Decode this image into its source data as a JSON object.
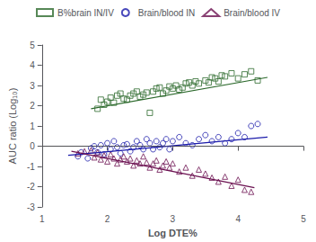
{
  "chart_data": {
    "type": "scatter",
    "xlabel": "Log DTE%",
    "ylabel": "AUC ratio (Log₁₀)",
    "xlim": [
      1,
      5
    ],
    "ylim": [
      -3,
      5
    ],
    "xticks": [
      1,
      2,
      3,
      4,
      5
    ],
    "yticks": [
      -3,
      -2,
      -1,
      0,
      1,
      2,
      3,
      4,
      5
    ],
    "grid": false,
    "legend": "top",
    "hline": {
      "y": 0,
      "line_style": "dotted",
      "color": "#555555"
    },
    "series": [
      {
        "name": "B%brain IN/IV",
        "color": "#2d6a2d",
        "marker": "square",
        "x": [
          1.85,
          1.9,
          1.95,
          2.0,
          2.05,
          2.1,
          2.15,
          2.2,
          2.25,
          2.3,
          2.35,
          2.4,
          2.45,
          2.5,
          2.55,
          2.6,
          2.65,
          2.7,
          2.75,
          2.8,
          2.85,
          2.9,
          2.95,
          3.0,
          3.05,
          3.1,
          3.15,
          3.2,
          3.25,
          3.3,
          3.35,
          3.4,
          3.5,
          3.55,
          3.6,
          3.65,
          3.7,
          3.75,
          3.8,
          3.9,
          4.0,
          4.1,
          4.2,
          4.3
        ],
        "values": [
          1.85,
          2.3,
          2.05,
          2.2,
          2.4,
          2.15,
          2.5,
          2.6,
          2.35,
          2.3,
          2.5,
          2.6,
          2.7,
          2.45,
          2.55,
          2.65,
          1.65,
          2.7,
          2.85,
          2.9,
          2.6,
          2.75,
          2.95,
          2.85,
          3.0,
          2.8,
          2.9,
          3.1,
          3.15,
          3.0,
          3.2,
          3.1,
          3.25,
          3.15,
          3.4,
          3.35,
          3.2,
          3.5,
          3.45,
          3.6,
          3.35,
          3.55,
          3.7,
          3.25
        ],
        "trendline": {
          "x": [
            1.75,
            4.45
          ],
          "y": [
            1.85,
            3.4
          ]
        }
      },
      {
        "name": "Brain/blood IN",
        "color": "#1a1aaa",
        "marker": "circle",
        "x": [
          1.55,
          1.6,
          1.7,
          1.75,
          1.8,
          1.85,
          1.9,
          1.95,
          2.0,
          2.05,
          2.1,
          2.15,
          2.2,
          2.25,
          2.3,
          2.35,
          2.4,
          2.45,
          2.5,
          2.55,
          2.6,
          2.65,
          2.7,
          2.75,
          2.8,
          2.85,
          2.9,
          2.95,
          3.0,
          3.1,
          3.2,
          3.3,
          3.4,
          3.5,
          3.6,
          3.7,
          3.8,
          3.9,
          4.0,
          4.1,
          4.2,
          4.3
        ],
        "values": [
          -0.5,
          -0.3,
          -0.6,
          -0.1,
          0.0,
          -0.3,
          0.05,
          -0.4,
          0.15,
          -0.15,
          0.25,
          -0.05,
          -0.35,
          0.05,
          0.1,
          -0.25,
          -0.05,
          0.25,
          0.05,
          -0.15,
          0.35,
          0.15,
          -0.15,
          0.25,
          -0.05,
          0.15,
          0.35,
          -0.15,
          0.25,
          0.45,
          0.15,
          0.05,
          0.35,
          0.55,
          0.25,
          0.45,
          0.15,
          0.35,
          0.65,
          0.45,
          1.0,
          1.1
        ],
        "trendline": {
          "x": [
            1.4,
            4.45
          ],
          "y": [
            -0.45,
            0.45
          ]
        }
      },
      {
        "name": "Brain/blood IV",
        "color": "#6b1050",
        "marker": "triangle",
        "x": [
          1.55,
          1.65,
          1.75,
          1.8,
          1.85,
          1.9,
          1.95,
          2.0,
          2.05,
          2.1,
          2.15,
          2.2,
          2.25,
          2.3,
          2.35,
          2.4,
          2.45,
          2.5,
          2.55,
          2.6,
          2.65,
          2.7,
          2.75,
          2.8,
          2.85,
          2.9,
          2.95,
          3.0,
          3.1,
          3.2,
          3.3,
          3.4,
          3.5,
          3.6,
          3.7,
          3.8,
          3.9,
          4.0,
          4.1,
          4.2
        ],
        "values": [
          -0.35,
          -0.25,
          -0.2,
          -0.55,
          -0.3,
          -0.65,
          -0.45,
          -0.75,
          -0.4,
          -0.6,
          -0.85,
          -0.65,
          -0.5,
          -0.75,
          -0.6,
          -0.95,
          -0.7,
          -0.85,
          -0.5,
          -0.8,
          -1.05,
          -0.85,
          -0.7,
          -1.15,
          -0.95,
          -0.75,
          -1.05,
          -0.85,
          -1.25,
          -1.05,
          -1.45,
          -1.15,
          -1.35,
          -1.55,
          -1.75,
          -1.5,
          -1.95,
          -1.65,
          -2.15,
          -2.25
        ],
        "trendline": {
          "x": [
            1.45,
            4.25
          ],
          "y": [
            -0.25,
            -2.05
          ]
        }
      }
    ]
  }
}
